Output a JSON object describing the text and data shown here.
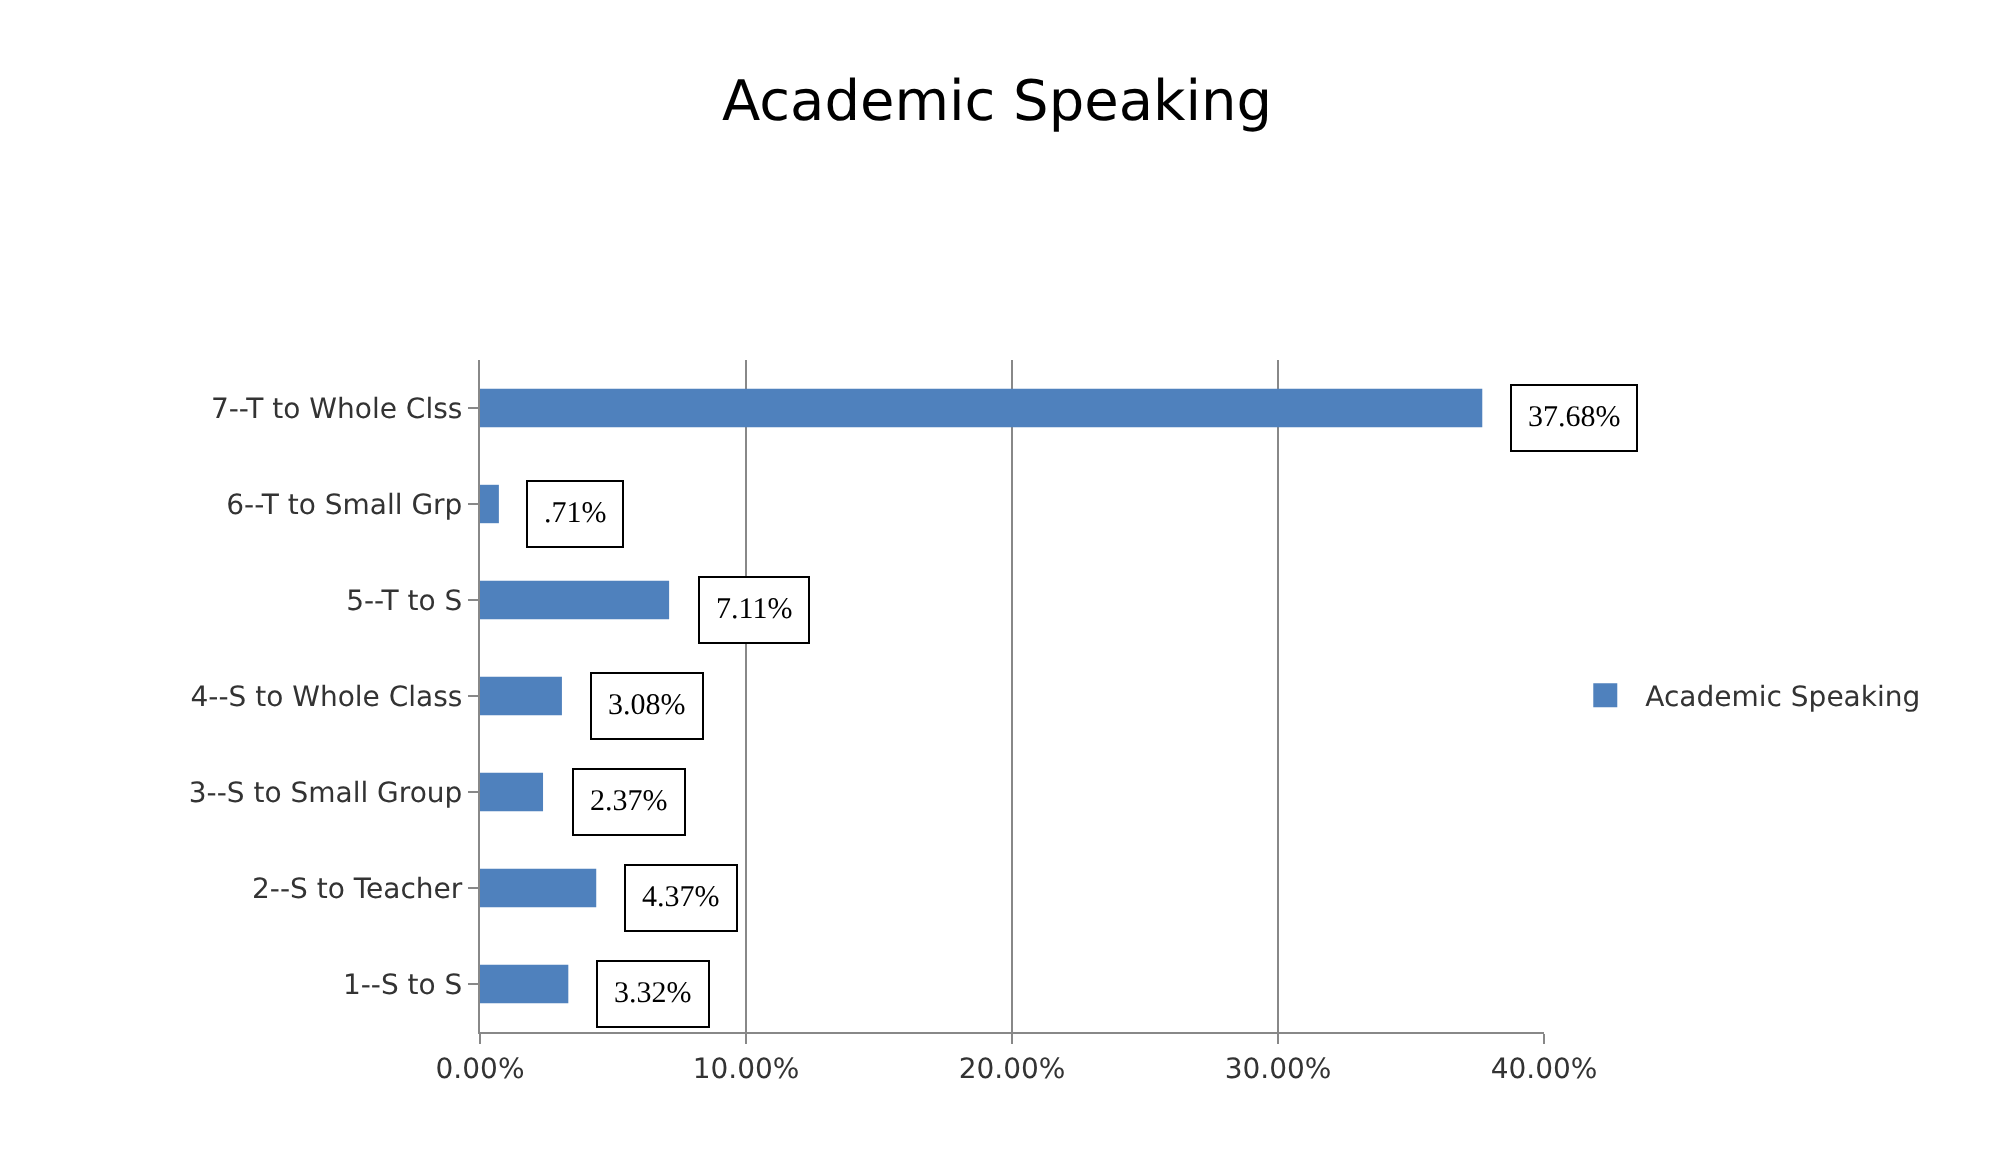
{
  "chart_data": {
    "type": "bar",
    "title": "Academic Speaking",
    "orientation": "horizontal",
    "categories": [
      "7--T to Whole Clss",
      "6--T to Small Grp",
      "5--T to S",
      "4--S to Whole Class",
      "3--S to Small Group",
      "2--S to Teacher",
      "1--S to S"
    ],
    "series": [
      {
        "name": "Academic Speaking",
        "color": "#4f81bd",
        "values": [
          37.68,
          0.71,
          7.11,
          3.08,
          2.37,
          4.37,
          3.32
        ],
        "value_labels": [
          "37.68%",
          ".71%",
          "7.11%",
          "3.08%",
          "2.37%",
          "4.37%",
          "3.32%"
        ]
      }
    ],
    "xlim": [
      0,
      40
    ],
    "xticks": [
      {
        "value": 0,
        "label": "0.00%"
      },
      {
        "value": 10,
        "label": "10.00%"
      },
      {
        "value": 20,
        "label": "20.00%"
      },
      {
        "value": 30,
        "label": "30.00%"
      },
      {
        "value": 40,
        "label": "40.00%"
      }
    ],
    "grid": "x",
    "legend": "right"
  }
}
